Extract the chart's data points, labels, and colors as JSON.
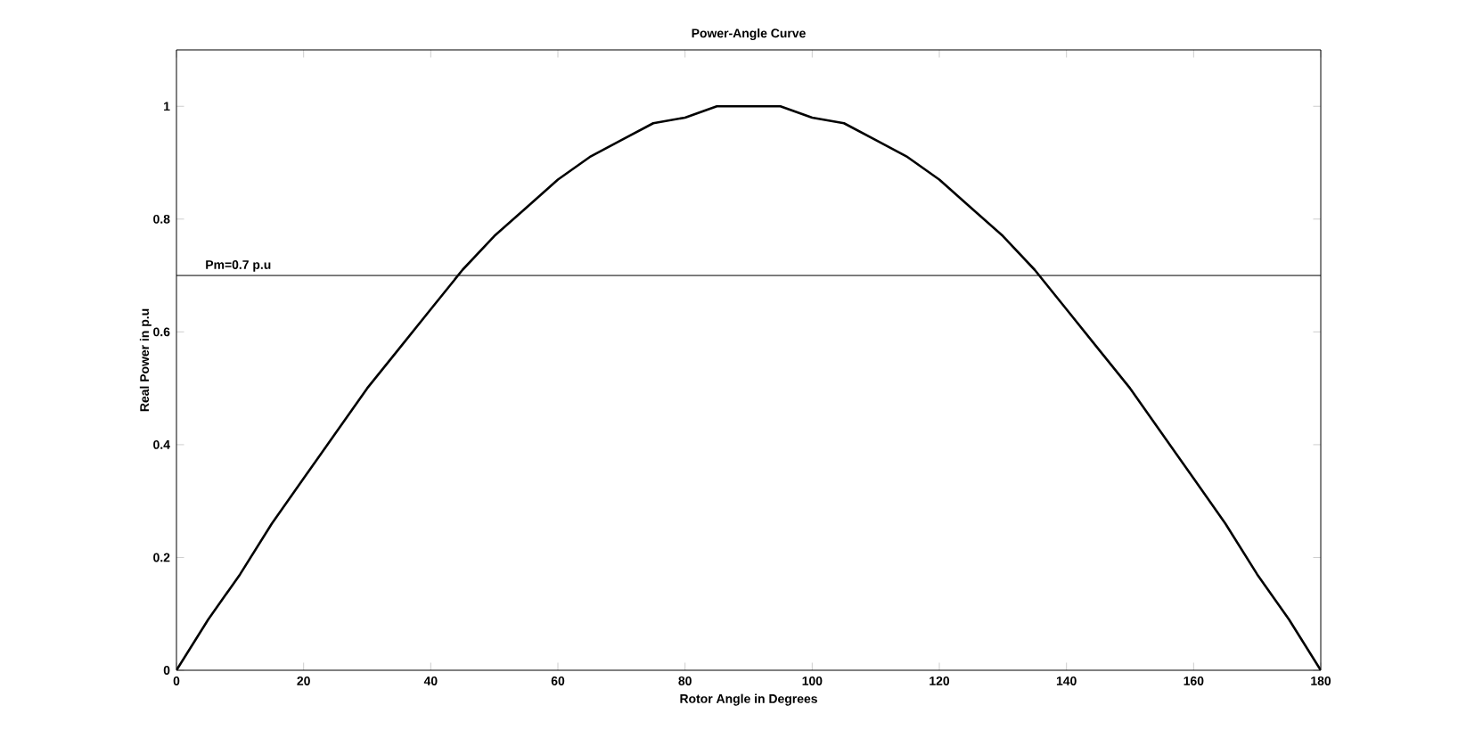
{
  "chart_data": {
    "type": "line",
    "title": "Power-Angle Curve",
    "xlabel": "Rotor Angle in Degrees",
    "ylabel": "Real Power in p.u",
    "x": [
      0,
      5,
      10,
      15,
      20,
      25,
      30,
      35,
      40,
      45,
      50,
      55,
      60,
      65,
      70,
      75,
      80,
      85,
      90,
      95,
      100,
      105,
      110,
      115,
      120,
      125,
      130,
      135,
      140,
      145,
      150,
      155,
      160,
      165,
      170,
      175,
      180
    ],
    "series": [
      {
        "color": "#000000",
        "values": [
          0,
          0.09,
          0.17,
          0.26,
          0.34,
          0.42,
          0.5,
          0.57,
          0.64,
          0.71,
          0.77,
          0.82,
          0.87,
          0.91,
          0.94,
          0.97,
          0.98,
          1.0,
          1.0,
          1.0,
          0.98,
          0.97,
          0.94,
          0.91,
          0.87,
          0.82,
          0.77,
          0.71,
          0.64,
          0.57,
          0.5,
          0.42,
          0.34,
          0.26,
          0.17,
          0.09,
          0
        ]
      }
    ],
    "xlim": [
      0,
      180
    ],
    "ylim": [
      0,
      1.1
    ],
    "xticks": [
      0,
      20,
      40,
      60,
      80,
      100,
      120,
      140,
      160,
      180
    ],
    "yticks": [
      0,
      0.2,
      0.4,
      0.6,
      0.8,
      1
    ],
    "ref_lines": [
      {
        "axis": "y",
        "value": 0.7,
        "label": "Pm=0.7 p.u",
        "color": "#000000"
      }
    ],
    "grid": false,
    "marker": "none",
    "line_style": "solid"
  }
}
